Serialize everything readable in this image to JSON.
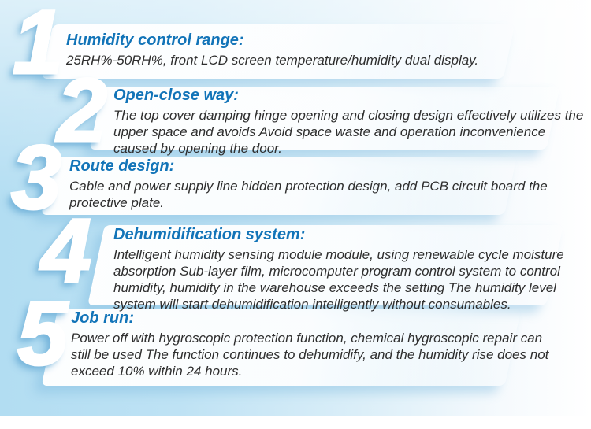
{
  "colors": {
    "heading": "#1274b8",
    "body_text": "#2e2e2e",
    "number_fill": "#ffffff",
    "number_shadow": "#6eafd7",
    "background_left": "#b2ddf2",
    "background_right": "#ffffff",
    "band_fill": "#ffffff"
  },
  "steps": [
    {
      "number": "1",
      "title": "Humidity control range:",
      "body_lines": [
        "25RH%-50RH%, front LCD screen temperature/humidity dual display."
      ]
    },
    {
      "number": "2",
      "title": "Open-close way:",
      "body_lines": [
        "The top cover damping hinge opening and closing design effectively utilizes the",
        "upper space and avoids Avoid space waste and operation inconvenience",
        "caused by opening the door."
      ]
    },
    {
      "number": "3",
      "title": "Route design:",
      "body_lines": [
        "Cable and power supply line hidden protection design, add PCB circuit board the",
        "protective plate."
      ]
    },
    {
      "number": "4",
      "title": "Dehumidification system:",
      "body_lines": [
        "Intelligent humidity sensing module module, using renewable cycle moisture",
        "absorption Sub-layer film, microcomputer program control system to control",
        "humidity, humidity in the warehouse exceeds the setting The humidity level",
        "system will start dehumidification intelligently without consumables."
      ]
    },
    {
      "number": "5",
      "title": "Job run:",
      "body_lines": [
        "Power off with hygroscopic protection function, chemical hygroscopic repair can",
        "still be used The function continues to dehumidify, and the humidity rise does not",
        "exceed 10% within 24 hours."
      ]
    }
  ]
}
